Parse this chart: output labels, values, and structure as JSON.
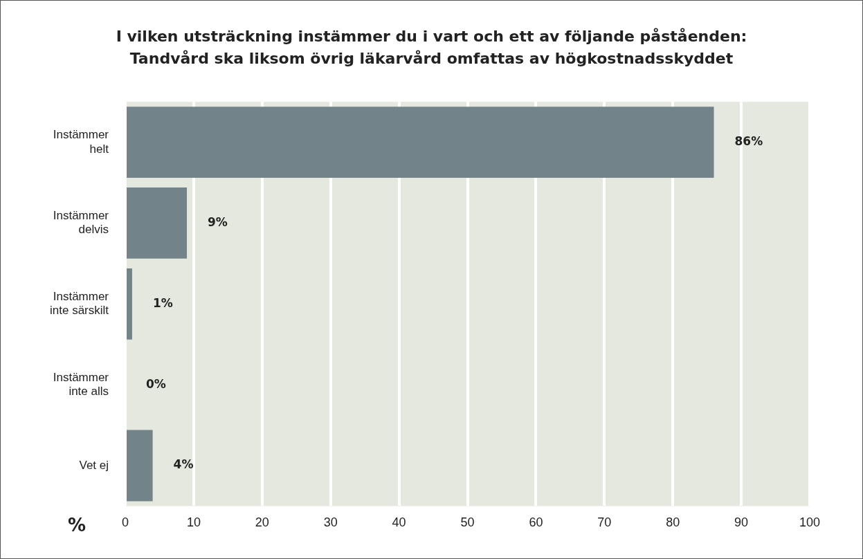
{
  "chart_data": {
    "type": "bar",
    "orientation": "horizontal",
    "title": "I vilken utsträckning instämmer du i vart och ett av följande påståenden:\nTandvård ska liksom övrig läkarvård omfattas av högkostnadsskyddet",
    "xlabel": "%",
    "categories": [
      "Instämmer\nhelt",
      "Instämmer\ndelvis",
      "Instämmer\ninte särskilt",
      "Instämmer\ninte alls",
      "Vet ej"
    ],
    "values": [
      86,
      9,
      1,
      0,
      4
    ],
    "value_labels": [
      "86%",
      "9%",
      "1%",
      "0%",
      "4%"
    ],
    "color": "#72838a",
    "xlim": [
      0,
      100
    ],
    "xticks": [
      0,
      10,
      20,
      30,
      40,
      50,
      60,
      70,
      80,
      90,
      100
    ],
    "grid": "x",
    "legend": false
  }
}
